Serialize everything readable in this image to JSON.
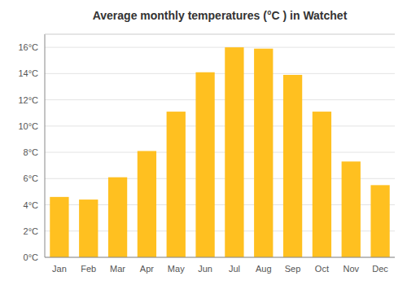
{
  "chart_data": {
    "type": "bar",
    "title": "Average monthly temperatures (°C ) in Watchet",
    "categories": [
      "Jan",
      "Feb",
      "Mar",
      "Apr",
      "May",
      "Jun",
      "Jul",
      "Aug",
      "Sep",
      "Oct",
      "Nov",
      "Dec"
    ],
    "values": [
      4.6,
      4.4,
      6.1,
      8.1,
      11.1,
      14.1,
      16.0,
      15.9,
      13.9,
      11.1,
      7.3,
      5.5
    ],
    "color": "#FFC020",
    "ylim": [
      0,
      17
    ],
    "yticks": [
      {
        "value": 0,
        "label": "0°C"
      },
      {
        "value": 2,
        "label": "2°C"
      },
      {
        "value": 4,
        "label": "4°C"
      },
      {
        "value": 6,
        "label": "6°C"
      },
      {
        "value": 8,
        "label": "8°C"
      },
      {
        "value": 10,
        "label": "10°C"
      },
      {
        "value": 12,
        "label": "12°C"
      },
      {
        "value": 14,
        "label": "14°C"
      },
      {
        "value": 16,
        "label": "16°C"
      }
    ],
    "grid": true
  }
}
